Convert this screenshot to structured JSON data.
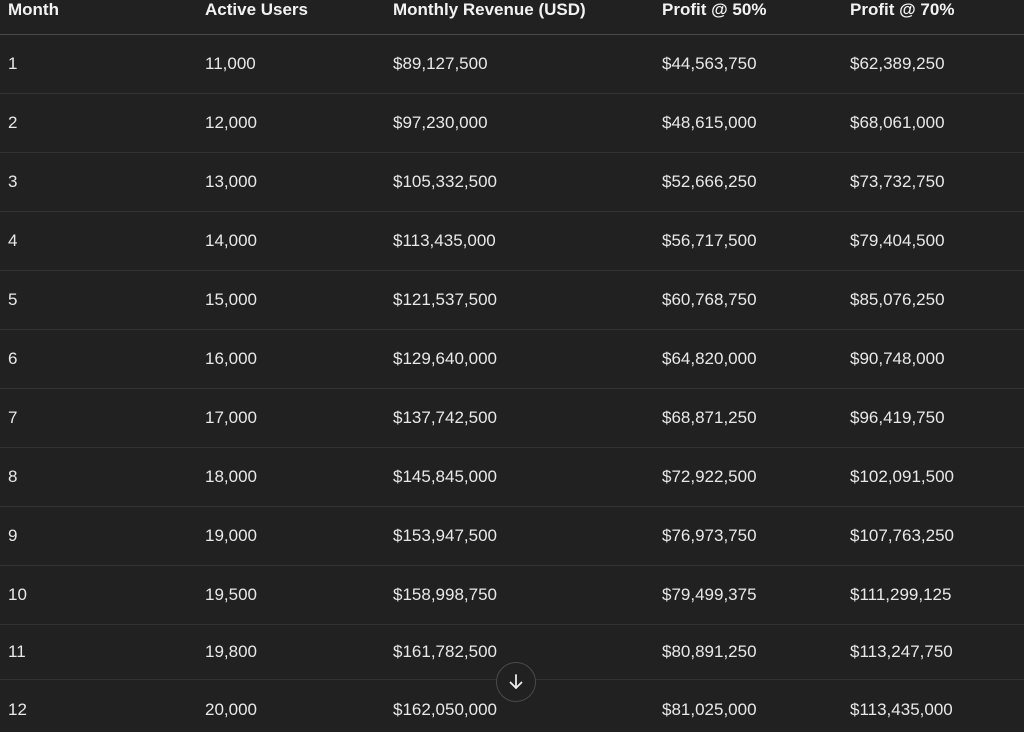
{
  "table": {
    "headers": [
      "Month",
      "Active Users",
      "Monthly Revenue (USD)",
      "Profit @ 50%",
      "Profit @ 70%"
    ],
    "rows": [
      [
        "1",
        "11,000",
        "$89,127,500",
        "$44,563,750",
        "$62,389,250"
      ],
      [
        "2",
        "12,000",
        "$97,230,000",
        "$48,615,000",
        "$68,061,000"
      ],
      [
        "3",
        "13,000",
        "$105,332,500",
        "$52,666,250",
        "$73,732,750"
      ],
      [
        "4",
        "14,000",
        "$113,435,000",
        "$56,717,500",
        "$79,404,500"
      ],
      [
        "5",
        "15,000",
        "$121,537,500",
        "$60,768,750",
        "$85,076,250"
      ],
      [
        "6",
        "16,000",
        "$129,640,000",
        "$64,820,000",
        "$90,748,000"
      ],
      [
        "7",
        "17,000",
        "$137,742,500",
        "$68,871,250",
        "$96,419,750"
      ],
      [
        "8",
        "18,000",
        "$145,845,000",
        "$72,922,500",
        "$102,091,500"
      ],
      [
        "9",
        "19,000",
        "$153,947,500",
        "$76,973,750",
        "$107,763,250"
      ],
      [
        "10",
        "19,500",
        "$158,998,750",
        "$79,499,375",
        "$111,299,125"
      ],
      [
        "11",
        "19,800",
        "$161,782,500",
        "$80,891,250",
        "$113,247,750"
      ],
      [
        "12",
        "20,000",
        "$162,050,000",
        "$81,025,000",
        "$113,435,000"
      ]
    ]
  },
  "scroll_button": {
    "icon": "arrow-down-icon"
  },
  "colors": {
    "background": "#212121",
    "text": "#ececec",
    "row_divider": "#333333"
  }
}
